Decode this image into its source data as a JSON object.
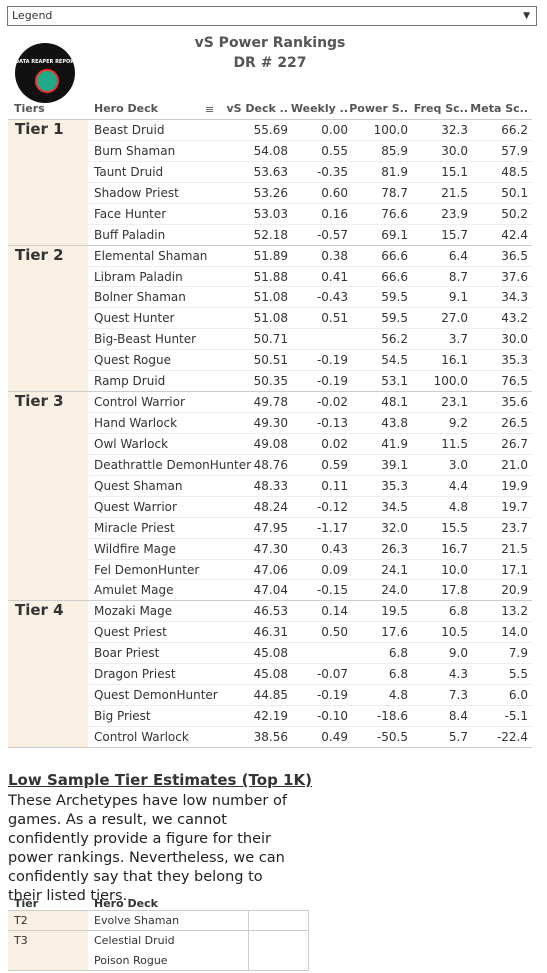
{
  "legend": "Legend",
  "header": {
    "title": "vS Power Rankings",
    "subtitle": "DR # 227",
    "logo": "DATA REAPER REPORT"
  },
  "table": {
    "columns": [
      "Tiers",
      "Hero Deck",
      "vS Deck ..",
      "Weekly ..",
      "Power S..",
      "Freq Sc..",
      "Meta Sc.."
    ],
    "groups": [
      {
        "tier": "Tier 1",
        "rows": [
          [
            "Beast Druid",
            "55.69",
            "0.00",
            "100.0",
            "32.3",
            "66.2"
          ],
          [
            "Burn Shaman",
            "54.08",
            "0.55",
            "85.9",
            "30.0",
            "57.9"
          ],
          [
            "Taunt Druid",
            "53.63",
            "-0.35",
            "81.9",
            "15.1",
            "48.5"
          ],
          [
            "Shadow Priest",
            "53.26",
            "0.60",
            "78.7",
            "21.5",
            "50.1"
          ],
          [
            "Face Hunter",
            "53.03",
            "0.16",
            "76.6",
            "23.9",
            "50.2"
          ],
          [
            "Buff Paladin",
            "52.18",
            "-0.57",
            "69.1",
            "15.7",
            "42.4"
          ]
        ]
      },
      {
        "tier": "Tier 2",
        "rows": [
          [
            "Elemental Shaman",
            "51.89",
            "0.38",
            "66.6",
            "6.4",
            "36.5"
          ],
          [
            "Libram Paladin",
            "51.88",
            "0.41",
            "66.6",
            "8.7",
            "37.6"
          ],
          [
            "Bolner Shaman",
            "51.08",
            "-0.43",
            "59.5",
            "9.1",
            "34.3"
          ],
          [
            "Quest Hunter",
            "51.08",
            "0.51",
            "59.5",
            "27.0",
            "43.2"
          ],
          [
            "Big-Beast Hunter",
            "50.71",
            null,
            "56.2",
            "3.7",
            "30.0"
          ],
          [
            "Quest Rogue",
            "50.51",
            "-0.19",
            "54.5",
            "16.1",
            "35.3"
          ],
          [
            "Ramp Druid",
            "50.35",
            "-0.19",
            "53.1",
            "100.0",
            "76.5"
          ]
        ]
      },
      {
        "tier": "Tier 3",
        "rows": [
          [
            "Control Warrior",
            "49.78",
            "-0.02",
            "48.1",
            "23.1",
            "35.6"
          ],
          [
            "Hand Warlock",
            "49.30",
            "-0.13",
            "43.8",
            "9.2",
            "26.5"
          ],
          [
            "Owl Warlock",
            "49.08",
            "0.02",
            "41.9",
            "11.5",
            "26.7"
          ],
          [
            "Deathrattle DemonHunter",
            "48.76",
            "0.59",
            "39.1",
            "3.0",
            "21.0"
          ],
          [
            "Quest Shaman",
            "48.33",
            "0.11",
            "35.3",
            "4.4",
            "19.9"
          ],
          [
            "Quest Warrior",
            "48.24",
            "-0.12",
            "34.5",
            "4.8",
            "19.7"
          ],
          [
            "Miracle Priest",
            "47.95",
            "-1.17",
            "32.0",
            "15.5",
            "23.7"
          ],
          [
            "Wildfire Mage",
            "47.30",
            "0.43",
            "26.3",
            "16.7",
            "21.5"
          ],
          [
            "Fel DemonHunter",
            "47.06",
            "0.09",
            "24.1",
            "10.0",
            "17.1"
          ],
          [
            "Amulet Mage",
            "47.04",
            "-0.15",
            "24.0",
            "17.8",
            "20.9"
          ]
        ]
      },
      {
        "tier": "Tier 4",
        "rows": [
          [
            "Mozaki Mage",
            "46.53",
            "0.14",
            "19.5",
            "6.8",
            "13.2"
          ],
          [
            "Quest Priest",
            "46.31",
            "0.50",
            "17.6",
            "10.5",
            "14.0"
          ],
          [
            "Boar Priest",
            "45.08",
            null,
            "6.8",
            "9.0",
            "7.9"
          ],
          [
            "Dragon Priest",
            "45.08",
            "-0.07",
            "6.8",
            "4.3",
            "5.5"
          ],
          [
            "Quest DemonHunter",
            "44.85",
            "-0.19",
            "4.8",
            "7.3",
            "6.0"
          ],
          [
            "Big Priest",
            "42.19",
            "-0.10",
            "-18.6",
            "8.4",
            "-5.1"
          ],
          [
            "Control Warlock",
            "38.56",
            "0.49",
            "-50.5",
            "5.7",
            "-22.4"
          ]
        ]
      }
    ]
  },
  "low_sample": {
    "title": "Low Sample Tier Estimates (Top 1K)",
    "text": "These Archetypes have low number of games. As a result, we cannot confidently provide a figure for their power rankings. Nevertheless, we can confidently say that they belong to their listed tiers.",
    "columns": [
      "Tier",
      "Hero Deck"
    ],
    "groups": [
      {
        "tier": "T2",
        "decks": [
          "Evolve Shaman"
        ]
      },
      {
        "tier": "T3",
        "decks": [
          "Celestial Druid",
          "Poison Rogue"
        ]
      }
    ]
  }
}
